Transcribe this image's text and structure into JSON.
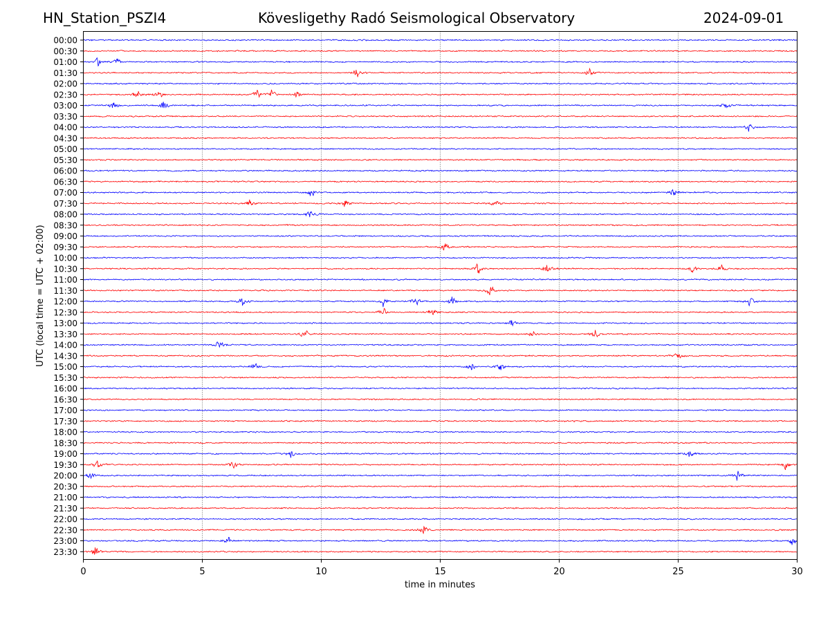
{
  "header": {
    "station": "HN_Station_PSZI4",
    "observatory": "Kövesligethy Radó Seismological Observatory",
    "date": "2024-09-01"
  },
  "chart_data": {
    "type": "line",
    "title": "Kövesligethy Radó Seismological Observatory",
    "xlabel": "time in minutes",
    "ylabel": "UTC (local time = UTC + 02:00)",
    "xlim": [
      0,
      30
    ],
    "xticks": [
      0,
      5,
      10,
      15,
      20,
      25,
      30
    ],
    "xtick_labels": [
      "0",
      "5",
      "10",
      "15",
      "20",
      "25",
      "30"
    ],
    "grid": "vertical dotted lines at x = 5, 10, 15, 20, 25",
    "series_colors": [
      "#0000ff",
      "#ff0000"
    ],
    "rows": [
      "00:00",
      "00:30",
      "01:00",
      "01:30",
      "02:00",
      "02:30",
      "03:00",
      "03:30",
      "04:00",
      "04:30",
      "05:00",
      "05:30",
      "06:00",
      "06:30",
      "07:00",
      "07:30",
      "08:00",
      "08:30",
      "09:00",
      "09:30",
      "10:00",
      "10:30",
      "11:00",
      "11:30",
      "12:00",
      "12:30",
      "13:00",
      "13:30",
      "14:00",
      "14:30",
      "15:00",
      "15:30",
      "16:00",
      "16:30",
      "17:00",
      "17:30",
      "18:00",
      "18:30",
      "19:00",
      "19:30",
      "20:00",
      "20:30",
      "21:00",
      "21:30",
      "22:00",
      "22:30",
      "23:00",
      "23:30"
    ],
    "notable_events": [
      {
        "row": "01:00",
        "minutes": [
          0.6,
          1.4
        ]
      },
      {
        "row": "01:30",
        "minutes": [
          11.5,
          21.3
        ]
      },
      {
        "row": "02:30",
        "minutes": [
          2.3,
          3.2,
          7.3,
          7.9,
          9.0
        ]
      },
      {
        "row": "03:00",
        "minutes": [
          1.3,
          3.4,
          27.0
        ]
      },
      {
        "row": "04:00",
        "minutes": [
          28.0
        ]
      },
      {
        "row": "07:00",
        "minutes": [
          9.6,
          24.8
        ]
      },
      {
        "row": "07:30",
        "minutes": [
          7.0,
          11.0,
          17.3
        ]
      },
      {
        "row": "08:00",
        "minutes": [
          9.5
        ]
      },
      {
        "row": "09:30",
        "minutes": [
          15.2
        ]
      },
      {
        "row": "10:30",
        "minutes": [
          16.6,
          19.5,
          25.6,
          26.8
        ]
      },
      {
        "row": "11:30",
        "minutes": [
          17.1
        ]
      },
      {
        "row": "12:00",
        "minutes": [
          6.7,
          12.6,
          14.0,
          15.5,
          28.0
        ]
      },
      {
        "row": "12:30",
        "minutes": [
          12.6,
          14.7
        ]
      },
      {
        "row": "13:00",
        "minutes": [
          18.0
        ]
      },
      {
        "row": "13:30",
        "minutes": [
          9.3,
          18.9,
          21.5
        ]
      },
      {
        "row": "14:00",
        "minutes": [
          5.7
        ]
      },
      {
        "row": "14:30",
        "minutes": [
          25.0
        ]
      },
      {
        "row": "15:00",
        "minutes": [
          7.2,
          16.3,
          17.5
        ]
      },
      {
        "row": "19:00",
        "minutes": [
          8.7,
          25.5
        ]
      },
      {
        "row": "19:30",
        "minutes": [
          0.6,
          6.3,
          29.5
        ]
      },
      {
        "row": "20:00",
        "minutes": [
          0.3,
          27.5
        ]
      },
      {
        "row": "22:30",
        "minutes": [
          14.3
        ]
      },
      {
        "row": "23:00",
        "minutes": [
          6.1,
          29.8
        ]
      },
      {
        "row": "23:30",
        "minutes": [
          0.5
        ]
      }
    ]
  }
}
